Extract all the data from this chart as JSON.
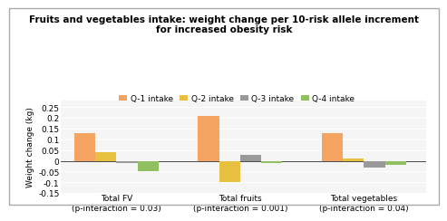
{
  "title": "Fruits and vegetables intake: weight change per 10-risk allele increment\nfor increased obesity risk",
  "ylabel": "Weight change (kg)",
  "groups": [
    "Total FV\n(p-interaction = 0.03)",
    "Total fruits\n(p-interaction = 0.001)",
    "Total vegetables\n(p-interaction = 0.04)"
  ],
  "series_labels": [
    "Q-1 intake",
    "Q-2 intake",
    "Q-3 intake",
    "Q-4 intake"
  ],
  "series_colors": [
    "#F4A460",
    "#E8C040",
    "#999999",
    "#90C060"
  ],
  "values": [
    [
      0.13,
      0.04,
      -0.01,
      -0.05
    ],
    [
      0.21,
      -0.1,
      0.03,
      -0.01
    ],
    [
      0.13,
      0.01,
      -0.03,
      -0.02
    ]
  ],
  "ylim": [
    -0.15,
    0.28
  ],
  "yticks": [
    -0.15,
    -0.1,
    -0.05,
    0,
    0.05,
    0.1,
    0.15,
    0.2,
    0.25
  ],
  "background_color": "#ffffff",
  "plot_bg_color": "#f5f5f5",
  "title_fontsize": 7.5,
  "legend_fontsize": 6.5,
  "axis_fontsize": 6.5,
  "tick_fontsize": 6.5,
  "border_color": "#aaaaaa"
}
